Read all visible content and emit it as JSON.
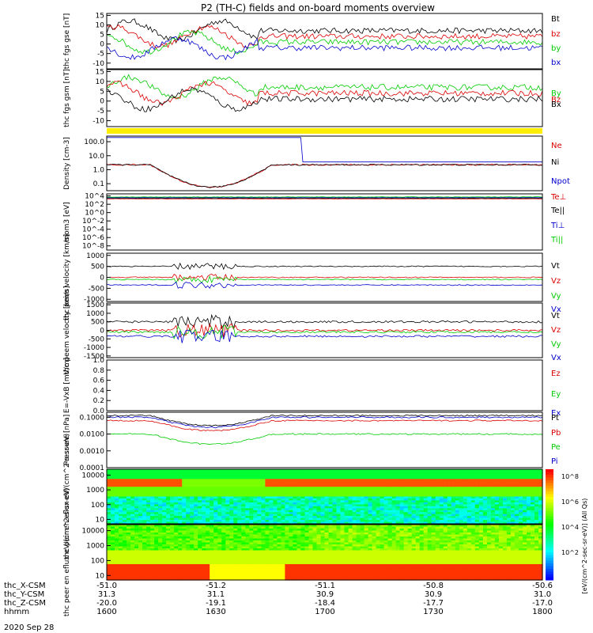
{
  "title": "P2 (TH-C) fields and on-board moments overview",
  "date": "2020 Sep 28",
  "colors": {
    "black": "#000000",
    "red": "#dd0000",
    "green": "#00cc00",
    "blue": "#0000cc",
    "yellow": "#ffee00"
  },
  "x_axis": {
    "rows": [
      {
        "label": "thc_X-CSM",
        "values": [
          "-51.0",
          "-51.2",
          "-51.1",
          "-50.8",
          "-50.6"
        ]
      },
      {
        "label": "thc_Y-CSM",
        "values": [
          "31.3",
          "31.1",
          "30.9",
          "30.9",
          "31.0"
        ]
      },
      {
        "label": "thc_Z-CSM",
        "values": [
          "-20.0",
          "-19.1",
          "-18.4",
          "-17.7",
          "-17.0"
        ]
      },
      {
        "label": "hhmm",
        "values": [
          "1600",
          "1630",
          "1700",
          "1730",
          "1800"
        ]
      }
    ]
  },
  "colorbar": {
    "label": "[eV/(cm^2-sec-sr-eV)] (All Qs)",
    "ticks": [
      "10^8",
      "10^6",
      "10^4",
      "10^2"
    ]
  },
  "chart_data": [
    {
      "type": "line",
      "ylabel": "thc fgs gse [nT]",
      "yticks": [
        "15",
        "10",
        "5",
        "0",
        "-5",
        "-10"
      ],
      "series": [
        {
          "name": "Bt",
          "color": "black"
        },
        {
          "name": "bz",
          "color": "red"
        },
        {
          "name": "by",
          "color": "green"
        },
        {
          "name": "bx",
          "color": "blue"
        }
      ]
    },
    {
      "type": "line",
      "ylabel": "thc fgs gsm [nT]",
      "yticks": [
        "15",
        "10",
        "5",
        "0",
        "-5",
        "-10"
      ],
      "series": [
        {
          "name": "By",
          "color": "green"
        },
        {
          "name": "Bz",
          "color": "red"
        },
        {
          "name": "Bx",
          "color": "black"
        }
      ]
    },
    {
      "type": "line",
      "ylabel": "Density [cm-3]",
      "yticks": [
        "100.0",
        "10.0",
        "1.0",
        "0.1"
      ],
      "series": [
        {
          "name": "Ne",
          "color": "red"
        },
        {
          "name": "Ni",
          "color": "black"
        },
        {
          "name": "Npot",
          "color": "blue"
        }
      ]
    },
    {
      "type": "line",
      "ylabel": "mom3 [eV]",
      "yticks": [
        "10^4",
        "10^2",
        "10^0",
        "10^-2",
        "10^-4",
        "10^-6",
        "10^-8"
      ],
      "series": [
        {
          "name": "Te⊥",
          "color": "red"
        },
        {
          "name": "Te||",
          "color": "black"
        },
        {
          "name": "Ti⊥",
          "color": "blue"
        },
        {
          "name": "Ti||",
          "color": "green"
        }
      ]
    },
    {
      "type": "line",
      "ylabel": "thc peim velocity [km/s]",
      "yticks": [
        "1000",
        "500",
        "0",
        "-500",
        "-1000"
      ],
      "series": [
        {
          "name": "Vt",
          "color": "black"
        },
        {
          "name": "Vz",
          "color": "red"
        },
        {
          "name": "Vy",
          "color": "green"
        },
        {
          "name": "Vx",
          "color": "blue"
        }
      ]
    },
    {
      "type": "line",
      "ylabel": "thc peem velocity [km/s]",
      "yticks": [
        "1500",
        "1000",
        "500",
        "0",
        "-500",
        "-1000",
        "-1500"
      ],
      "series": [
        {
          "name": "Vt",
          "color": "black"
        },
        {
          "name": "Vz",
          "color": "red"
        },
        {
          "name": "Vy",
          "color": "green"
        },
        {
          "name": "Vx",
          "color": "blue"
        }
      ]
    },
    {
      "type": "line",
      "ylabel": "E=-VxB [mV/m]",
      "yticks": [
        "1.0",
        "0.8",
        "0.6",
        "0.4",
        "0.2",
        "0.0"
      ],
      "series": [
        {
          "name": "Ez",
          "color": "red"
        },
        {
          "name": "Ey",
          "color": "green"
        },
        {
          "name": "Ex",
          "color": "blue"
        }
      ]
    },
    {
      "type": "line",
      "ylabel": "Pressure [nPa]",
      "yticks": [
        "0.1000",
        "0.0100",
        "0.0010",
        "0.0001"
      ],
      "series": [
        {
          "name": "Pt",
          "color": "black"
        },
        {
          "name": "Pb",
          "color": "red"
        },
        {
          "name": "Pe",
          "color": "green"
        },
        {
          "name": "Pi",
          "color": "blue"
        }
      ]
    },
    {
      "type": "heatmap",
      "ylabel": "thc peir en eflux eV/(cm^2-s-sr-eV)",
      "yticks": [
        "10000",
        "1000",
        "100",
        "10"
      ]
    },
    {
      "type": "heatmap",
      "ylabel": "thc peer en eflux eV/(cm^2-s-sr-eV)",
      "yticks": [
        "10000",
        "1000",
        "100",
        "10"
      ]
    }
  ]
}
